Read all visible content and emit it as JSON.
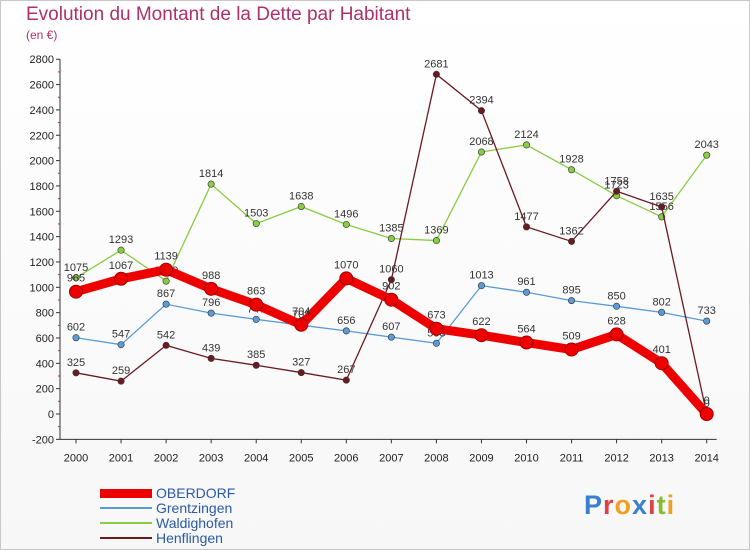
{
  "header": {
    "title": "Evolution du Montant de la Dette par Habitant",
    "subtitle": "(en €)"
  },
  "logo": {
    "text": "Proxiti"
  },
  "chart_data": {
    "type": "line",
    "title": "Evolution du Montant de la Dette par Habitant",
    "ylabel": "(en €)",
    "xlabel": "",
    "x": [
      "2000",
      "2001",
      "2002",
      "2003",
      "2004",
      "2005",
      "2006",
      "2007",
      "2008",
      "2009",
      "2010",
      "2011",
      "2012",
      "2013",
      "2014"
    ],
    "ylim": [
      -200,
      2800
    ],
    "yticks": [
      -200,
      0,
      200,
      400,
      600,
      800,
      1000,
      1200,
      1400,
      1600,
      1800,
      2000,
      2200,
      2400,
      2600,
      2800
    ],
    "grid": false,
    "legend_position": "bottom-left",
    "series": [
      {
        "name": "OBERDORF",
        "color": "#ee0000",
        "emphasis": true,
        "values": [
          965,
          1067,
          1139,
          988,
          863,
          704,
          1070,
          902,
          673,
          622,
          564,
          509,
          628,
          401,
          0
        ]
      },
      {
        "name": "Grentzingen",
        "color": "#5b9bd5",
        "values": [
          602,
          547,
          867,
          796,
          747,
          701,
          656,
          607,
          558,
          1013,
          961,
          895,
          850,
          802,
          733
        ]
      },
      {
        "name": "Waldighofen",
        "color": "#88cc44",
        "values": [
          1075,
          1293,
          1049,
          1814,
          1503,
          1638,
          1496,
          1385,
          1369,
          2068,
          2124,
          1928,
          1723,
          1556,
          2043
        ]
      },
      {
        "name": "Henflingen",
        "color": "#6b1a22",
        "values": [
          325,
          259,
          542,
          439,
          385,
          327,
          267,
          1060,
          2681,
          2394,
          1477,
          1362,
          1758,
          1635,
          0
        ]
      }
    ]
  }
}
